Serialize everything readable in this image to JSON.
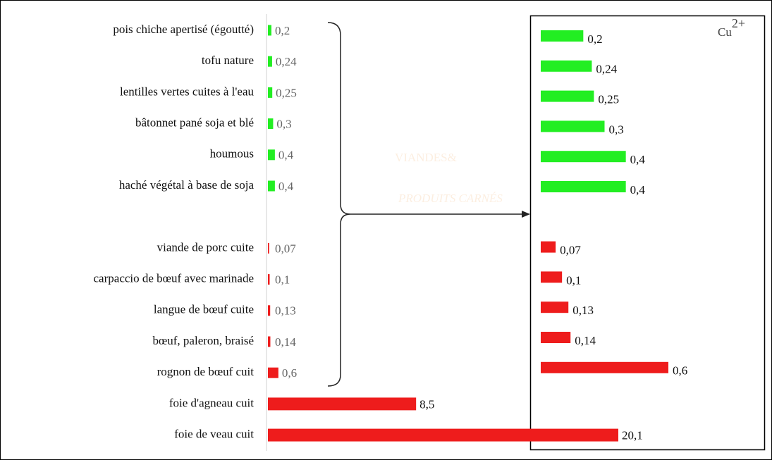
{
  "chart_data": {
    "type": "bar",
    "orientation": "horizontal",
    "categories": [
      "pois chiche apertisé (égoutté)",
      "tofu nature",
      "lentilles vertes cuites à l'eau",
      "bâtonnet pané soja et blé",
      "houmous",
      "haché végétal à base de soja",
      null,
      "viande de porc cuite",
      "carpaccio de bœuf avec marinade",
      "langue de bœuf cuite",
      "bœuf, paleron, braisé",
      "rognon de bœuf cuit",
      "foie d'agneau cuit",
      "foie de veau cuit"
    ],
    "values": [
      0.2,
      0.24,
      0.25,
      0.3,
      0.4,
      0.4,
      null,
      0.07,
      0.1,
      0.13,
      0.14,
      0.6,
      8.5,
      20.1
    ],
    "value_labels": [
      "0,2",
      "0,24",
      "0,25",
      "0,3",
      "0,4",
      "0,4",
      null,
      "0,07",
      "0,1",
      "0,13",
      "0,14",
      "0,6",
      "8,5",
      "20,1"
    ],
    "colors": [
      "#22ee22",
      "#22ee22",
      "#22ee22",
      "#22ee22",
      "#22ee22",
      "#22ee22",
      null,
      "#ee1c1c",
      "#ee1c1c",
      "#ee1c1c",
      "#ee1c1c",
      "#ee1c1c",
      "#ee1c1c",
      "#ee1c1c"
    ],
    "inset": {
      "title": [
        "Cu",
        "2+"
      ],
      "values": [
        0.2,
        0.24,
        0.25,
        0.3,
        0.4,
        0.4,
        null,
        0.07,
        0.1,
        0.13,
        0.14,
        0.6
      ],
      "value_labels": [
        "0,2",
        "0,24",
        "0,25",
        "0,3",
        "0,4",
        "0,4",
        null,
        "0,07",
        "0,1",
        "0,13",
        "0,14",
        "0,6"
      ]
    },
    "watermark": [
      "VIANDES&",
      "PRODUITS CARNÉS"
    ]
  }
}
